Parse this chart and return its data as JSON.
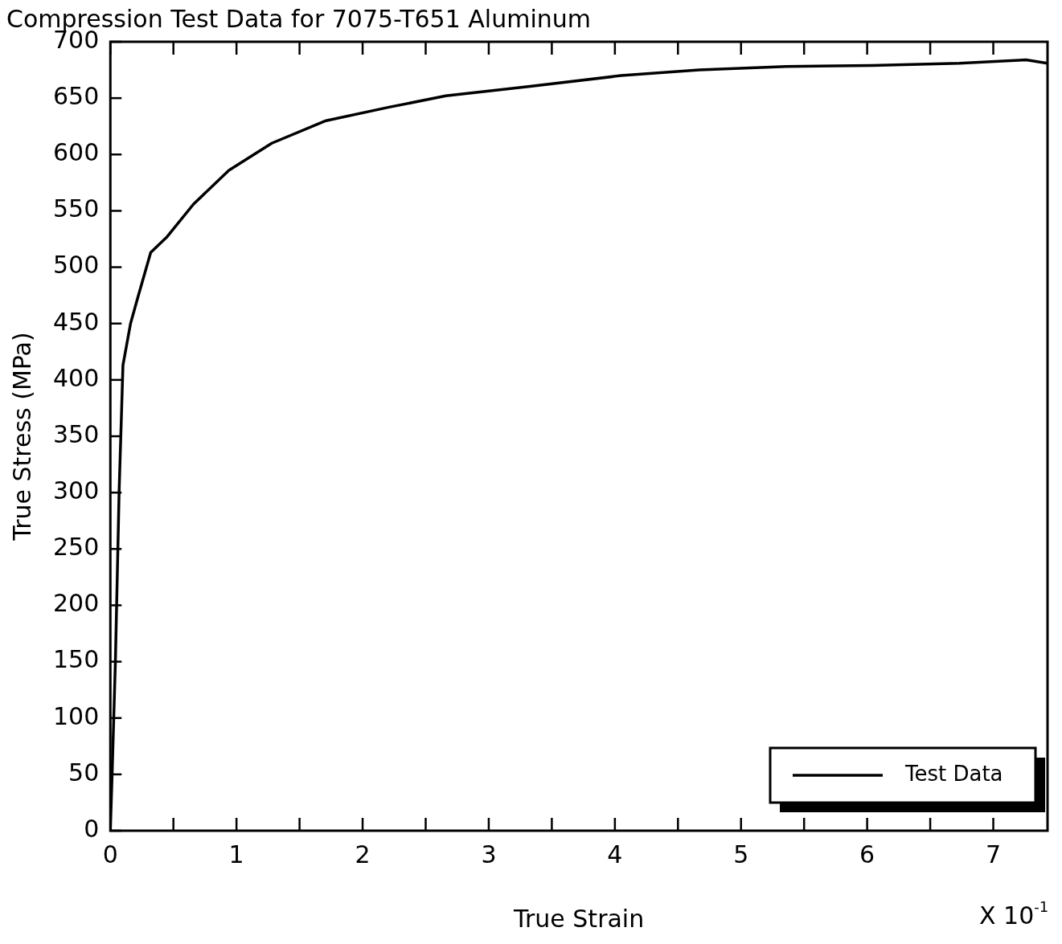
{
  "chart_data": {
    "type": "line",
    "title": "Compression Test Data for 7075-T651 Aluminum",
    "xlabel": "True Strain",
    "ylabel": "True Stress (MPa)",
    "annotations": [
      "X 10$^{-1}$"
    ],
    "series": [
      {
        "name": "Test Data",
        "color": "#000000",
        "x": [
          0,
          0.014,
          0.04,
          0.07,
          0.1,
          0.16,
          0.22,
          0.32,
          0.45,
          0.66,
          0.94,
          1.28,
          1.71,
          2.21,
          2.66,
          3.3,
          4.05,
          4.67,
          5.36,
          6.04,
          6.73,
          7.26,
          7.43
        ],
        "values": [
          0,
          50,
          150,
          303,
          413,
          450,
          474,
          513,
          527,
          556,
          586,
          610,
          630,
          642,
          652,
          660,
          670,
          675,
          678,
          679,
          681,
          684,
          681
        ]
      }
    ],
    "xlim": [
      0,
      7.43
    ],
    "xticks": [
      0,
      {
        "value": 0.5,
        "label": null
      },
      1,
      {
        "value": 1.5,
        "label": null
      },
      2,
      {
        "value": 2.5,
        "label": null
      },
      3,
      {
        "value": 3.5,
        "label": null
      },
      4,
      {
        "value": 4.5,
        "label": null
      },
      5,
      {
        "value": 5.5,
        "label": null
      },
      6,
      {
        "value": 6.5,
        "label": null
      },
      7
    ],
    "ylim": [
      0,
      700
    ],
    "yticks": [
      0,
      50,
      100,
      150,
      200,
      250,
      300,
      350,
      400,
      450,
      500,
      550,
      600,
      650,
      700
    ],
    "grid": false,
    "legend": "bottom right",
    "marker": "none",
    "line_style": "solid"
  }
}
